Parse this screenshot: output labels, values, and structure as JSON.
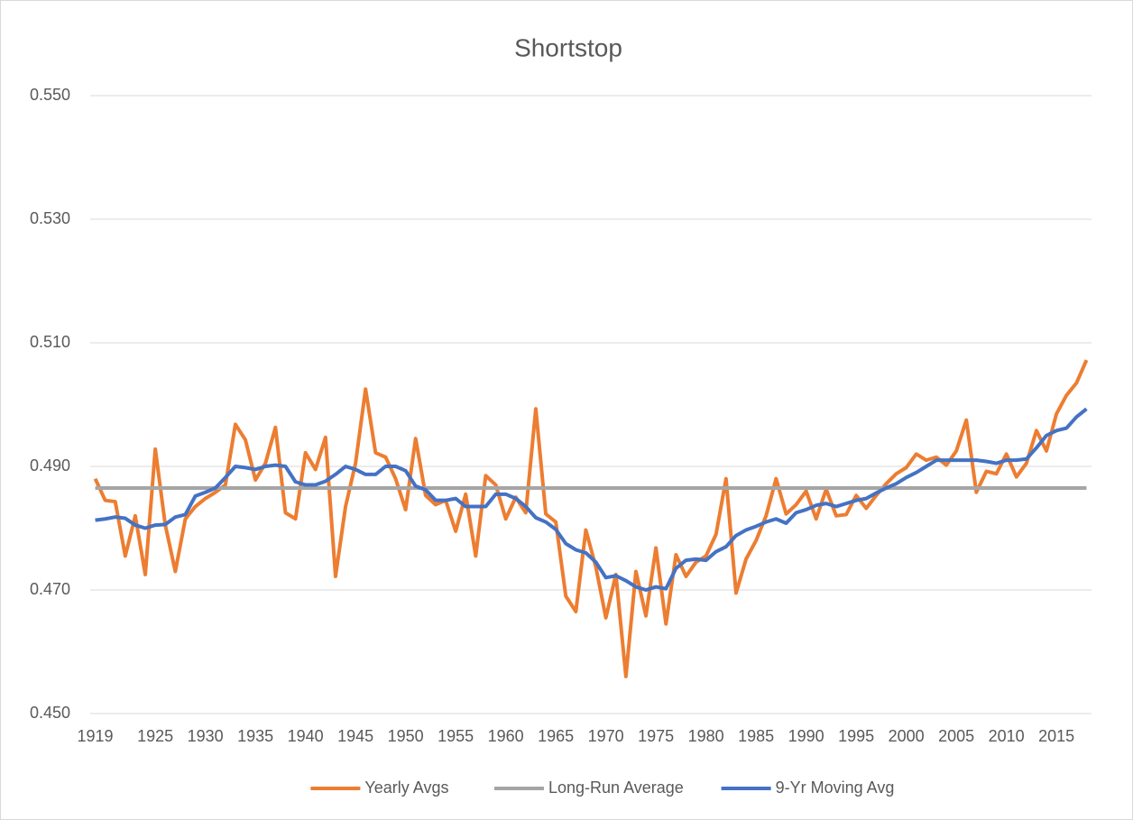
{
  "chart_data": {
    "type": "line",
    "title": "Shortstop",
    "categories": [
      "1919",
      null,
      null,
      null,
      null,
      null,
      "1925",
      null,
      null,
      null,
      null,
      "1930",
      null,
      null,
      null,
      null,
      "1935",
      null,
      null,
      null,
      null,
      "1940",
      null,
      null,
      null,
      null,
      "1945",
      null,
      null,
      null,
      null,
      "1950",
      null,
      null,
      null,
      null,
      "1955",
      null,
      null,
      null,
      null,
      "1960",
      null,
      null,
      null,
      null,
      "1965",
      null,
      null,
      null,
      null,
      "1970",
      null,
      null,
      null,
      null,
      "1975",
      null,
      null,
      null,
      null,
      "1980",
      null,
      null,
      null,
      null,
      "1985",
      null,
      null,
      null,
      null,
      "1990",
      null,
      null,
      null,
      null,
      "1995",
      null,
      null,
      null,
      null,
      "2000",
      null,
      null,
      null,
      null,
      "2005",
      null,
      null,
      null,
      null,
      "2010",
      null,
      null,
      null,
      null,
      "2015",
      null,
      null,
      null
    ],
    "series": [
      {
        "name": "Yearly Avgs",
        "color": "#ED7D31",
        "values": [
          0.488,
          0.4845,
          0.4843,
          0.4755,
          0.482,
          0.4725,
          0.4928,
          0.4805,
          0.473,
          0.4815,
          0.4835,
          0.4848,
          0.4858,
          0.487,
          0.4968,
          0.4943,
          0.4878,
          0.4905,
          0.4963,
          0.4825,
          0.4815,
          0.4922,
          0.4895,
          0.4947,
          0.4722,
          0.4835,
          0.4905,
          0.5025,
          0.4922,
          0.4915,
          0.488,
          0.483,
          0.4945,
          0.4853,
          0.4838,
          0.4845,
          0.4795,
          0.4855,
          0.4755,
          0.4885,
          0.487,
          0.4815,
          0.485,
          0.4825,
          0.4993,
          0.4823,
          0.481,
          0.469,
          0.4665,
          0.4797,
          0.4737,
          0.4655,
          0.4725,
          0.456,
          0.473,
          0.4658,
          0.4768,
          0.4645,
          0.4757,
          0.4722,
          0.4745,
          0.4755,
          0.479,
          0.488,
          0.4695,
          0.475,
          0.478,
          0.482,
          0.488,
          0.4823,
          0.4838,
          0.486,
          0.4815,
          0.4863,
          0.482,
          0.4822,
          0.4853,
          0.4832,
          0.4853,
          0.4872,
          0.4888,
          0.4898,
          0.492,
          0.491,
          0.4915,
          0.4902,
          0.4925,
          0.4975,
          0.4858,
          0.4892,
          0.4888,
          0.492,
          0.4883,
          0.4905,
          0.4958,
          0.4925,
          0.4985,
          0.5015,
          0.5035,
          0.5072
        ]
      },
      {
        "name": "Long-Run Average",
        "color": "#A5A5A5",
        "values": [
          0.4865,
          0.4865,
          0.4865,
          0.4865,
          0.4865,
          0.4865,
          0.4865,
          0.4865,
          0.4865,
          0.4865,
          0.4865,
          0.4865,
          0.4865,
          0.4865,
          0.4865,
          0.4865,
          0.4865,
          0.4865,
          0.4865,
          0.4865,
          0.4865,
          0.4865,
          0.4865,
          0.4865,
          0.4865,
          0.4865,
          0.4865,
          0.4865,
          0.4865,
          0.4865,
          0.4865,
          0.4865,
          0.4865,
          0.4865,
          0.4865,
          0.4865,
          0.4865,
          0.4865,
          0.4865,
          0.4865,
          0.4865,
          0.4865,
          0.4865,
          0.4865,
          0.4865,
          0.4865,
          0.4865,
          0.4865,
          0.4865,
          0.4865,
          0.4865,
          0.4865,
          0.4865,
          0.4865,
          0.4865,
          0.4865,
          0.4865,
          0.4865,
          0.4865,
          0.4865,
          0.4865,
          0.4865,
          0.4865,
          0.4865,
          0.4865,
          0.4865,
          0.4865,
          0.4865,
          0.4865,
          0.4865,
          0.4865,
          0.4865,
          0.4865,
          0.4865,
          0.4865,
          0.4865,
          0.4865,
          0.4865,
          0.4865,
          0.4865,
          0.4865,
          0.4865,
          0.4865,
          0.4865,
          0.4865,
          0.4865,
          0.4865,
          0.4865,
          0.4865,
          0.4865,
          0.4865,
          0.4865,
          0.4865,
          0.4865,
          0.4865,
          0.4865,
          0.4865,
          0.4865,
          0.4865,
          0.4865
        ]
      },
      {
        "name": "9-Yr Moving Avg",
        "color": "#4472C4",
        "values": [
          0.4813,
          0.4815,
          0.4818,
          0.4816,
          0.4805,
          0.48,
          0.4805,
          0.4806,
          0.4818,
          0.4822,
          0.4852,
          0.4858,
          0.4865,
          0.4882,
          0.49,
          0.4898,
          0.4895,
          0.49,
          0.4902,
          0.49,
          0.4875,
          0.487,
          0.487,
          0.4876,
          0.4887,
          0.49,
          0.4895,
          0.4887,
          0.4887,
          0.49,
          0.49,
          0.4893,
          0.4868,
          0.4862,
          0.4845,
          0.4845,
          0.4848,
          0.4835,
          0.4835,
          0.4835,
          0.4855,
          0.4855,
          0.4848,
          0.4835,
          0.4817,
          0.481,
          0.4798,
          0.4775,
          0.4765,
          0.476,
          0.4745,
          0.472,
          0.4723,
          0.4715,
          0.4705,
          0.47,
          0.4705,
          0.4702,
          0.4735,
          0.4748,
          0.475,
          0.4748,
          0.4762,
          0.477,
          0.4788,
          0.4797,
          0.4803,
          0.481,
          0.4815,
          0.4808,
          0.4825,
          0.483,
          0.4837,
          0.484,
          0.4835,
          0.484,
          0.4845,
          0.4848,
          0.4857,
          0.4865,
          0.4872,
          0.4882,
          0.489,
          0.49,
          0.491,
          0.491,
          0.491,
          0.491,
          0.491,
          0.4908,
          0.4905,
          0.491,
          0.491,
          0.4912,
          0.493,
          0.495,
          0.4958,
          0.4962,
          0.498,
          0.4993
        ]
      }
    ],
    "ylim": [
      0.45,
      0.55
    ],
    "yticks": [
      {
        "value": 0.45,
        "label": "0.450"
      },
      {
        "value": 0.47,
        "label": "0.470"
      },
      {
        "value": 0.49,
        "label": "0.490"
      },
      {
        "value": 0.51,
        "label": "0.510"
      },
      {
        "value": 0.53,
        "label": "0.530"
      },
      {
        "value": 0.55,
        "label": "0.550"
      }
    ],
    "grid": true,
    "legend": "bottom"
  }
}
